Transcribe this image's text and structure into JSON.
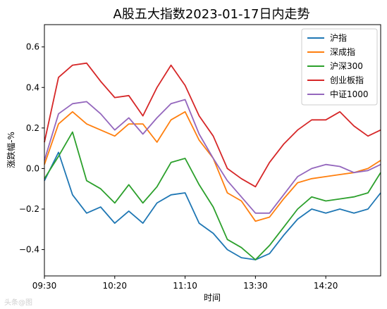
{
  "chart_data": {
    "type": "line",
    "title": "A股五大指数2023-01-17日内走势",
    "xlabel": "时间",
    "ylabel": "涨跌幅-%",
    "xlim": [
      "09:30",
      "14:59"
    ],
    "ylim": [
      -0.53,
      0.71
    ],
    "xticks": [
      "09:30",
      "10:20",
      "11:10",
      "13:30",
      "14:20"
    ],
    "yticks": [
      -0.4,
      -0.2,
      0.0,
      0.2,
      0.4,
      0.6
    ],
    "ytick_labels": [
      "−0.4",
      "−0.2",
      "0.0",
      "0.2",
      "0.4",
      "0.6"
    ],
    "grid": false,
    "legend_position": "top-right",
    "x": [
      "09:30",
      "09:40",
      "09:50",
      "10:00",
      "10:10",
      "10:20",
      "10:30",
      "10:40",
      "10:50",
      "11:00",
      "11:10",
      "11:20",
      "11:30",
      "13:10",
      "13:20",
      "13:30",
      "13:40",
      "13:50",
      "14:00",
      "14:10",
      "14:20",
      "14:30",
      "14:40",
      "14:50",
      "14:59"
    ],
    "series": [
      {
        "name": "沪指",
        "color": "#1f77b4",
        "values": [
          -0.06,
          0.08,
          -0.13,
          -0.22,
          -0.19,
          -0.27,
          -0.21,
          -0.27,
          -0.17,
          -0.13,
          -0.12,
          -0.27,
          -0.32,
          -0.4,
          -0.44,
          -0.45,
          -0.42,
          -0.33,
          -0.25,
          -0.2,
          -0.22,
          -0.2,
          -0.22,
          -0.2,
          -0.12
        ]
      },
      {
        "name": "深成指",
        "color": "#ff7f0e",
        "values": [
          0.02,
          0.22,
          0.28,
          0.22,
          0.19,
          0.16,
          0.22,
          0.22,
          0.13,
          0.24,
          0.28,
          0.14,
          0.05,
          -0.12,
          -0.16,
          -0.26,
          -0.24,
          -0.15,
          -0.07,
          -0.05,
          -0.04,
          -0.03,
          -0.02,
          0.0,
          0.04
        ]
      },
      {
        "name": "沪深300",
        "color": "#2ca02c",
        "values": [
          -0.05,
          0.06,
          0.18,
          -0.06,
          -0.1,
          -0.17,
          -0.08,
          -0.17,
          -0.09,
          0.03,
          0.05,
          -0.08,
          -0.19,
          -0.35,
          -0.39,
          -0.45,
          -0.38,
          -0.29,
          -0.2,
          -0.14,
          -0.16,
          -0.15,
          -0.14,
          -0.12,
          -0.02
        ]
      },
      {
        "name": "创业板指",
        "color": "#d62728",
        "values": [
          0.13,
          0.45,
          0.51,
          0.52,
          0.43,
          0.35,
          0.36,
          0.26,
          0.4,
          0.51,
          0.41,
          0.26,
          0.16,
          0.0,
          -0.05,
          -0.09,
          0.03,
          0.12,
          0.19,
          0.24,
          0.24,
          0.28,
          0.21,
          0.16,
          0.19
        ]
      },
      {
        "name": "中证1000",
        "color": "#9467bd",
        "values": [
          0.04,
          0.27,
          0.32,
          0.33,
          0.27,
          0.19,
          0.25,
          0.17,
          0.25,
          0.32,
          0.34,
          0.17,
          0.05,
          -0.06,
          -0.14,
          -0.22,
          -0.22,
          -0.13,
          -0.04,
          0.0,
          0.02,
          0.01,
          -0.02,
          -0.01,
          0.02
        ]
      }
    ]
  },
  "watermark": "头条@图"
}
